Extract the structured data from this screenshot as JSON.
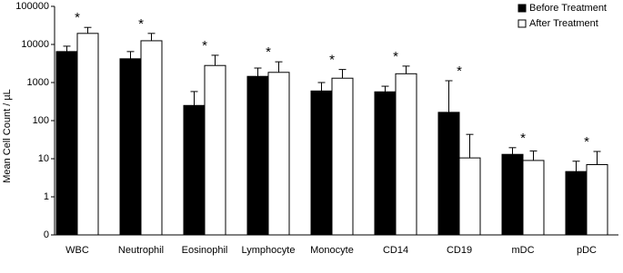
{
  "chart_data": {
    "type": "bar",
    "y_label": "Mean Cell Count / µL",
    "categories": [
      "WBC",
      "Neutrophil",
      "Eosinophil",
      "Lymphocyte",
      "Monocyte",
      "CD14",
      "CD19",
      "mDC",
      "pDC"
    ],
    "series": [
      {
        "name": "Before Treatment",
        "color": "#000000",
        "values": [
          6500,
          4200,
          250,
          1450,
          600,
          570,
          165,
          13,
          4.6
        ],
        "errors": [
          2500,
          2300,
          330,
          950,
          400,
          230,
          950,
          6.5,
          4
        ]
      },
      {
        "name": "After Treatment",
        "color": "#ffffff",
        "values": [
          19500,
          12500,
          2800,
          1850,
          1300,
          1700,
          10.5,
          9,
          7
        ],
        "errors": [
          8500,
          7000,
          2400,
          1650,
          900,
          1000,
          33,
          7,
          8.5
        ]
      }
    ],
    "annotations": [
      "*",
      "*",
      "*",
      "*",
      "*",
      "*",
      "*",
      "*",
      "*"
    ],
    "log_scale": true,
    "ylim": [
      0.1,
      100000
    ],
    "yticks": [
      {
        "value": 0.1,
        "label": "0"
      },
      1,
      10,
      100,
      1000,
      10000,
      100000
    ],
    "legend": "top-right"
  }
}
